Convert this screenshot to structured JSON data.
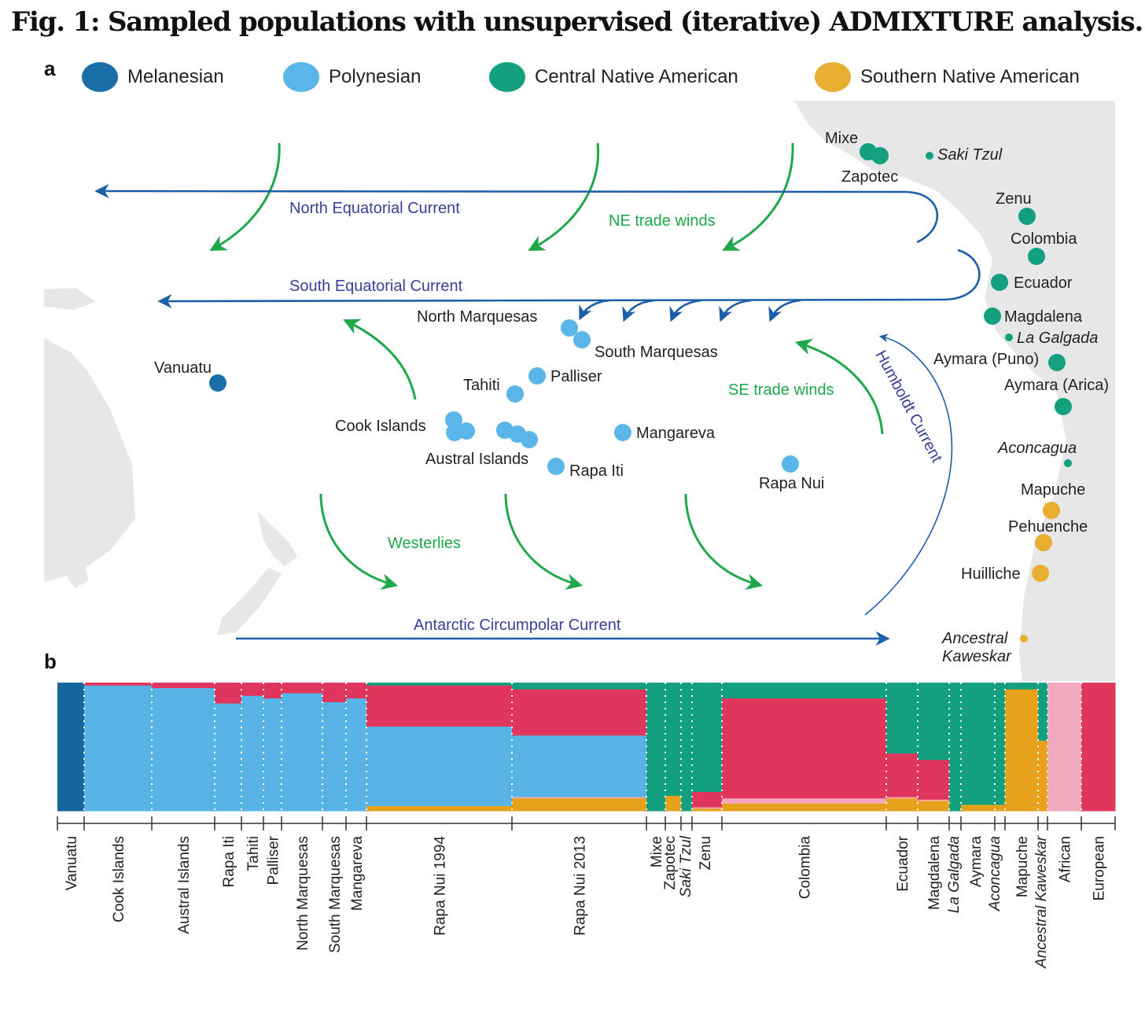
{
  "figure": {
    "title": "Fig. 1: Sampled populations with unsupervised (iterative) ADMIXTURE analysis.",
    "panel_a": "a",
    "panel_b": "b"
  },
  "legend": [
    {
      "label": "Melanesian",
      "color": "#1a6fa8"
    },
    {
      "label": "Polynesian",
      "color": "#5ab5e8"
    },
    {
      "label": "Central Native American",
      "color": "#13a07f"
    },
    {
      "label": "Southern Native American",
      "color": "#e8ae32"
    }
  ],
  "map": {
    "currents": [
      "North Equatorial Current",
      "South Equatorial Current",
      "Humboldt Current",
      "Antarctic Circumpolar Current"
    ],
    "winds": [
      "NE trade winds",
      "SE trade winds",
      "Westerlies"
    ],
    "populations": [
      {
        "name": "Vanuatu",
        "group": "Melanesian"
      },
      {
        "name": "North Marquesas",
        "group": "Polynesian"
      },
      {
        "name": "South Marquesas",
        "group": "Polynesian"
      },
      {
        "name": "Palliser",
        "group": "Polynesian"
      },
      {
        "name": "Tahiti",
        "group": "Polynesian"
      },
      {
        "name": "Cook Islands",
        "group": "Polynesian"
      },
      {
        "name": "Austral Islands",
        "group": "Polynesian"
      },
      {
        "name": "Mangareva",
        "group": "Polynesian"
      },
      {
        "name": "Rapa Iti",
        "group": "Polynesian"
      },
      {
        "name": "Rapa Nui",
        "group": "Polynesian"
      },
      {
        "name": "Mixe",
        "group": "Central Native American"
      },
      {
        "name": "Zapotec",
        "group": "Central Native American"
      },
      {
        "name": "Saki Tzul",
        "group": "Central Native American",
        "italic": true
      },
      {
        "name": "Zenu",
        "group": "Central Native American"
      },
      {
        "name": "Colombia",
        "group": "Central Native American"
      },
      {
        "name": "Ecuador",
        "group": "Central Native American"
      },
      {
        "name": "Magdalena",
        "group": "Central Native American"
      },
      {
        "name": "La Galgada",
        "group": "Central Native American",
        "italic": true
      },
      {
        "name": "Aymara (Puno)",
        "group": "Central Native American"
      },
      {
        "name": "Aymara (Arica)",
        "group": "Central Native American"
      },
      {
        "name": "Aconcagua",
        "group": "Central Native American",
        "italic": true
      },
      {
        "name": "Mapuche",
        "group": "Southern Native American"
      },
      {
        "name": "Pehuenche",
        "group": "Southern Native American"
      },
      {
        "name": "Huilliche",
        "group": "Southern Native American"
      },
      {
        "name": "Ancestral Kaweskar",
        "group": "Southern Native American",
        "italic": true
      }
    ]
  },
  "chart_data": {
    "type": "bar",
    "stacked": true,
    "ylim": [
      0,
      1
    ],
    "component_colors": {
      "Melanesian": "#16659d",
      "Polynesian": "#58b4e6",
      "Central Native American": "#13a07f",
      "Southern Native American": "#e5a21a",
      "African": "#f2a9be",
      "European": "#e0365e"
    },
    "categories": [
      "Vanuatu",
      "Cook Islands",
      "Austral Islands",
      "Rapa Iti",
      "Tahiti",
      "Palliser",
      "North Marquesas",
      "South Marquesas",
      "Mangareva",
      "Rapa Nui 1994",
      "Rapa Nui 2013",
      "Mixe",
      "Zapotec",
      "Saki Tzul",
      "Zenu",
      "Colombia",
      "Ecuador",
      "Magdalena",
      "La Galgada",
      "Aymara",
      "Aconcagua",
      "Mapuche",
      "Ancestral Kaweskar",
      "African",
      "European"
    ],
    "italic_categories": [
      "Saki Tzul",
      "La Galgada",
      "Aconcagua",
      "Ancestral Kaweskar"
    ],
    "series": [
      {
        "name": "Melanesian",
        "values": [
          1,
          0,
          0,
          0,
          0,
          0,
          0,
          0,
          0,
          0,
          0,
          0,
          0,
          0,
          0,
          0,
          0,
          0,
          0,
          0,
          0,
          0,
          0,
          0,
          0
        ]
      },
      {
        "name": "Polynesian",
        "values": [
          0,
          0.98,
          0.96,
          0.84,
          0.9,
          0.88,
          0.92,
          0.85,
          0.88,
          0.62,
          0.48,
          0,
          0,
          0,
          0,
          0,
          0,
          0,
          0,
          0,
          0,
          0,
          0,
          0,
          0
        ]
      },
      {
        "name": "Central Native American",
        "values": [
          0,
          0,
          0,
          0,
          0,
          0,
          0,
          0,
          0,
          0.02,
          0.05,
          1,
          0.88,
          1,
          0.85,
          0.12,
          0.55,
          0.6,
          1,
          0.95,
          0.95,
          0.05,
          0.45,
          0,
          0
        ]
      },
      {
        "name": "Southern Native American",
        "values": [
          0,
          0,
          0,
          0,
          0,
          0,
          0,
          0,
          0,
          0.04,
          0.1,
          0,
          0.12,
          0,
          0.02,
          0.06,
          0.1,
          0.08,
          0,
          0.05,
          0.05,
          0.95,
          0.55,
          0,
          0
        ]
      },
      {
        "name": "African",
        "values": [
          0,
          0,
          0,
          0,
          0,
          0,
          0,
          0,
          0,
          0,
          0.01,
          0,
          0,
          0,
          0.01,
          0.04,
          0.01,
          0.01,
          0,
          0,
          0,
          0,
          0,
          1,
          0
        ]
      },
      {
        "name": "European",
        "values": [
          0,
          0.02,
          0.04,
          0.16,
          0.1,
          0.12,
          0.08,
          0.15,
          0.12,
          0.32,
          0.36,
          0,
          0,
          0,
          0.12,
          0.78,
          0.34,
          0.31,
          0,
          0,
          0,
          0,
          0,
          0,
          1
        ]
      }
    ]
  }
}
